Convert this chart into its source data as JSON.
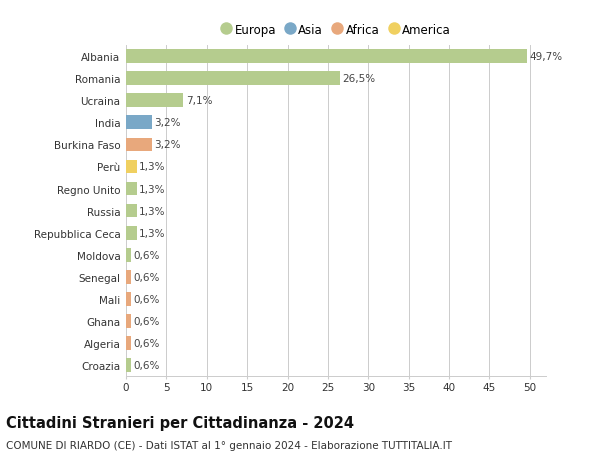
{
  "countries": [
    "Albania",
    "Romania",
    "Ucraina",
    "India",
    "Burkina Faso",
    "Perù",
    "Regno Unito",
    "Russia",
    "Repubblica Ceca",
    "Moldova",
    "Senegal",
    "Mali",
    "Ghana",
    "Algeria",
    "Croazia"
  ],
  "values": [
    49.7,
    26.5,
    7.1,
    3.2,
    3.2,
    1.3,
    1.3,
    1.3,
    1.3,
    0.6,
    0.6,
    0.6,
    0.6,
    0.6,
    0.6
  ],
  "labels": [
    "49,7%",
    "26,5%",
    "7,1%",
    "3,2%",
    "3,2%",
    "1,3%",
    "1,3%",
    "1,3%",
    "1,3%",
    "0,6%",
    "0,6%",
    "0,6%",
    "0,6%",
    "0,6%",
    "0,6%"
  ],
  "continents": [
    "Europa",
    "Europa",
    "Europa",
    "Asia",
    "Africa",
    "America",
    "Europa",
    "Europa",
    "Europa",
    "Europa",
    "Africa",
    "Africa",
    "Africa",
    "Africa",
    "Europa"
  ],
  "continent_colors": {
    "Europa": "#b5cc8e",
    "Asia": "#7aa8c7",
    "Africa": "#e8a87c",
    "America": "#f0d060"
  },
  "legend_order": [
    "Europa",
    "Asia",
    "Africa",
    "America"
  ],
  "title": "Cittadini Stranieri per Cittadinanza - 2024",
  "subtitle": "COMUNE DI RIARDO (CE) - Dati ISTAT al 1° gennaio 2024 - Elaborazione TUTTITALIA.IT",
  "xlim": [
    0,
    52
  ],
  "xticks": [
    0,
    5,
    10,
    15,
    20,
    25,
    30,
    35,
    40,
    45,
    50
  ],
  "background_color": "#ffffff",
  "grid_color": "#cccccc",
  "bar_height": 0.62,
  "label_fontsize": 7.5,
  "tick_fontsize": 7.5,
  "title_fontsize": 10.5,
  "subtitle_fontsize": 7.5,
  "legend_fontsize": 8.5
}
